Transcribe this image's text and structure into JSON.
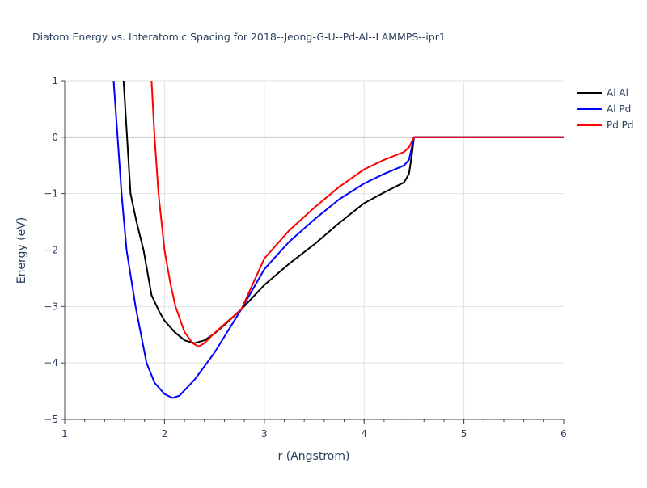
{
  "chart_data": {
    "type": "line",
    "title": "Diatom Energy vs. Interatomic Spacing for 2018--Jeong-G-U--Pd-Al--LAMMPS--ipr1",
    "xlabel": "r (Angstrom)",
    "ylabel": "Energy (eV)",
    "xlim": [
      1,
      6
    ],
    "ylim": [
      -5,
      1
    ],
    "xticks": [
      1,
      2,
      3,
      4,
      5,
      6
    ],
    "yticks": [
      1,
      0,
      -1,
      -2,
      -3,
      -4,
      -5
    ],
    "ytick_labels": [
      "1",
      "0",
      "−1",
      "−2",
      "−3",
      "−4",
      "−5"
    ],
    "grid": true,
    "legend_position": "top-right",
    "series": [
      {
        "name": "Al Al",
        "color": "#000000",
        "x": [
          1.59,
          1.66,
          1.72,
          1.79,
          1.87,
          1.95,
          2.0,
          2.1,
          2.2,
          2.3,
          2.4,
          2.5,
          2.6,
          2.77,
          3.0,
          3.25,
          3.5,
          3.75,
          4.0,
          4.2,
          4.4,
          4.45,
          4.48,
          4.5,
          6.0
        ],
        "y": [
          1,
          -1,
          -1.5,
          -2,
          -2.8,
          -3.1,
          -3.25,
          -3.45,
          -3.6,
          -3.65,
          -3.6,
          -3.48,
          -3.33,
          -3.05,
          -2.62,
          -2.24,
          -1.9,
          -1.52,
          -1.17,
          -0.98,
          -0.8,
          -0.65,
          -0.3,
          0,
          0
        ]
      },
      {
        "name": "Al Pd",
        "color": "#0000ff",
        "x": [
          1.49,
          1.53,
          1.57,
          1.62,
          1.71,
          1.82,
          1.9,
          2.0,
          2.08,
          2.15,
          2.3,
          2.5,
          2.77,
          3.0,
          3.25,
          3.5,
          3.75,
          4.0,
          4.2,
          4.4,
          4.45,
          4.5,
          6.0
        ],
        "y": [
          1,
          0,
          -1,
          -2,
          -3,
          -4,
          -4.35,
          -4.55,
          -4.62,
          -4.58,
          -4.3,
          -3.82,
          -3.05,
          -2.34,
          -1.85,
          -1.46,
          -1.1,
          -0.82,
          -0.65,
          -0.5,
          -0.4,
          0,
          0
        ]
      },
      {
        "name": "Pd Pd",
        "color": "#ff0000",
        "x": [
          1.87,
          1.9,
          1.94,
          2.0,
          2.06,
          2.11,
          2.2,
          2.28,
          2.34,
          2.4,
          2.5,
          2.77,
          3.0,
          3.25,
          3.5,
          3.75,
          4.0,
          4.2,
          4.4,
          4.45,
          4.5,
          6.0
        ],
        "y": [
          1,
          0,
          -1,
          -2,
          -2.6,
          -3,
          -3.45,
          -3.65,
          -3.71,
          -3.65,
          -3.47,
          -3.05,
          -2.15,
          -1.65,
          -1.25,
          -0.88,
          -0.57,
          -0.4,
          -0.26,
          -0.18,
          0,
          0
        ]
      }
    ]
  }
}
